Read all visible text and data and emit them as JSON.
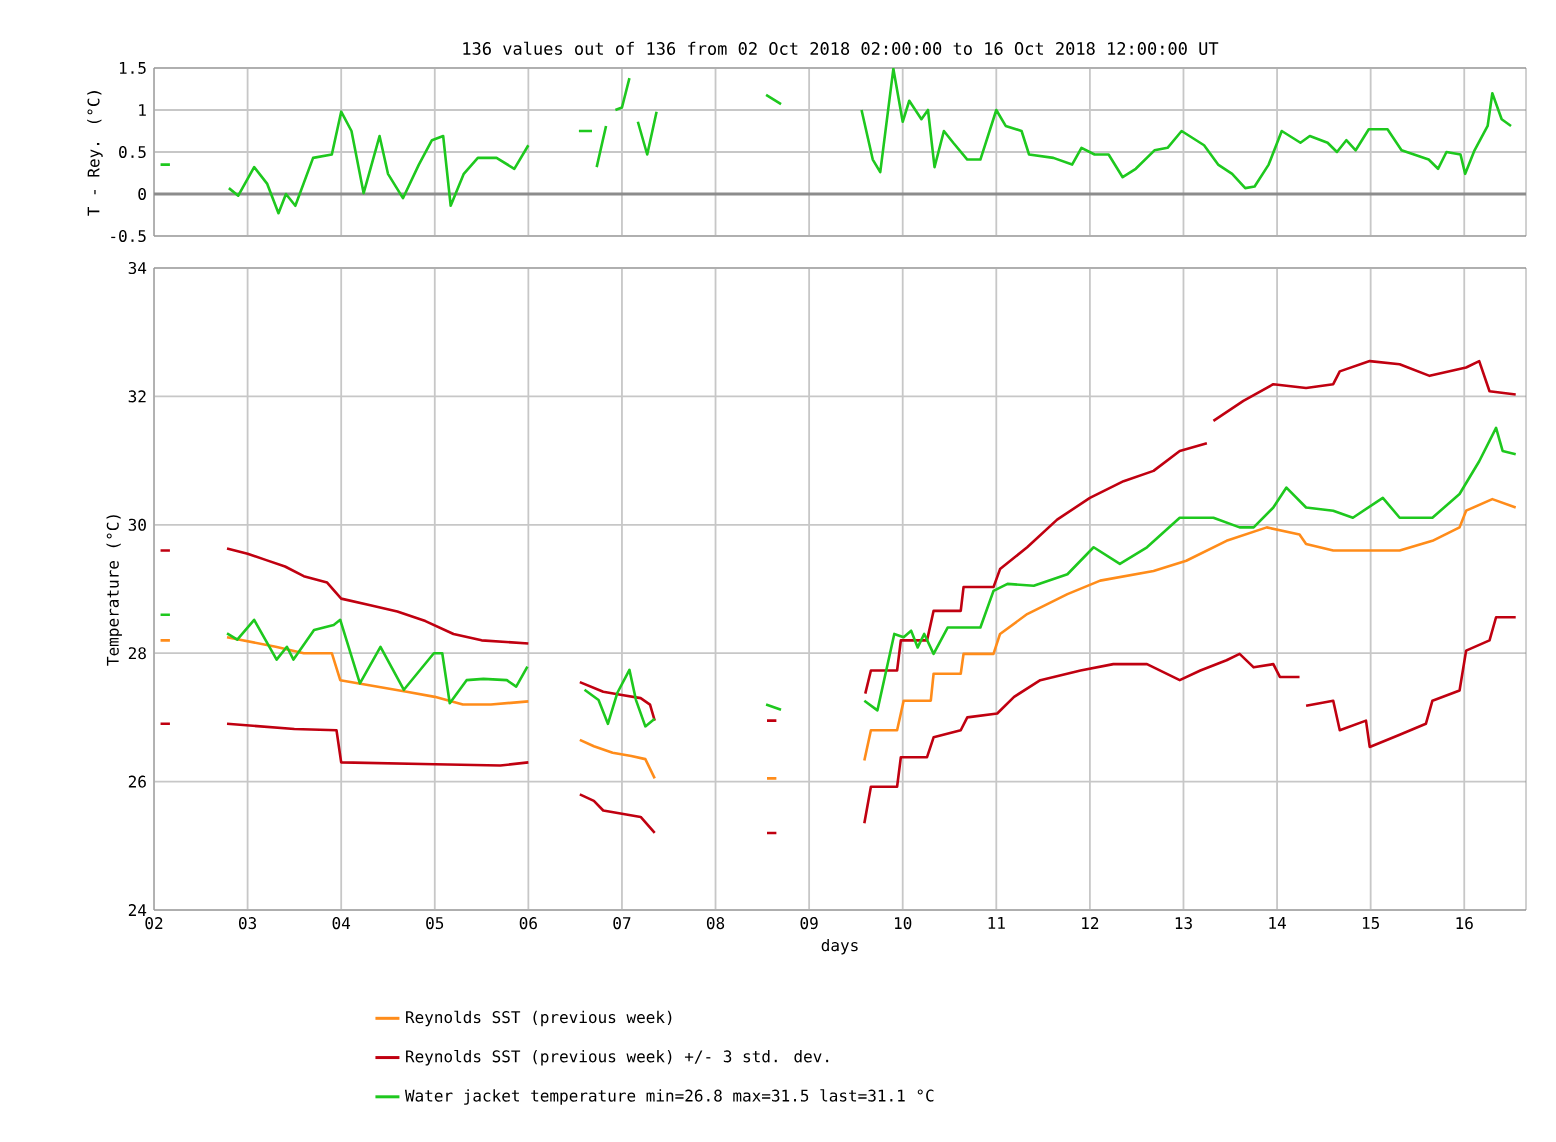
{
  "chart_data": [
    {
      "type": "line",
      "title": "136 values out of 136 from 02 Oct 2018 02:00:00 to 16 Oct 2018 12:00:00 UT",
      "ylabel": "T - Rey. (°C)",
      "xlim": [
        2,
        16.66
      ],
      "ylim": [
        -0.5,
        1.5
      ],
      "xticks": [
        {
          "value": 2,
          "label": null
        },
        {
          "value": 3,
          "label": null
        },
        {
          "value": 4,
          "label": null
        },
        {
          "value": 5,
          "label": null
        },
        {
          "value": 6,
          "label": null
        },
        {
          "value": 7,
          "label": null
        },
        {
          "value": 8,
          "label": null
        },
        {
          "value": 9,
          "label": null
        },
        {
          "value": 10,
          "label": null
        },
        {
          "value": 11,
          "label": null
        },
        {
          "value": 12,
          "label": null
        },
        {
          "value": 13,
          "label": null
        },
        {
          "value": 14,
          "label": null
        },
        {
          "value": 15,
          "label": null
        },
        {
          "value": 16,
          "label": null
        }
      ],
      "yticks": [
        -0.5,
        0,
        0.5,
        1,
        1.5
      ],
      "grid": true,
      "tick_labels": "y",
      "ref_lines": [
        {
          "axis": "y",
          "value": 0,
          "color": "#8c8c8c"
        }
      ],
      "series": [
        {
          "color": "#1ec81e",
          "x": [
            2.07,
            2.17,
            2.5,
            2.8,
            2.9,
            3.07,
            3.21,
            3.33,
            3.41,
            3.51,
            3.7,
            3.9,
            4.0,
            4.11,
            4.24,
            4.41,
            4.5,
            4.66,
            4.83,
            4.97,
            5.09,
            5.17,
            5.31,
            5.46,
            5.66,
            5.85,
            6.0,
            6.3,
            6.54,
            6.68,
            6.7,
            6.73,
            6.83,
            6.88,
            6.93,
            7.0,
            7.08,
            7.12,
            7.17,
            7.27,
            7.37,
            8.0,
            8.54,
            8.7,
            9.1,
            9.56,
            9.68,
            9.76,
            9.9,
            10.0,
            10.07,
            10.2,
            10.27,
            10.34,
            10.44,
            10.54,
            10.69,
            10.83,
            11.0,
            11.1,
            11.27,
            11.35,
            11.61,
            11.81,
            11.91,
            12.05,
            12.2,
            12.35,
            12.49,
            12.69,
            12.83,
            12.98,
            13.22,
            13.37,
            13.52,
            13.66,
            13.76,
            13.91,
            14.05,
            14.25,
            14.35,
            14.54,
            14.64,
            14.74,
            14.84,
            14.98,
            15.18,
            15.33,
            15.62,
            15.72,
            15.81,
            15.96,
            16.01,
            16.11,
            16.25,
            16.3,
            16.4,
            16.5
          ],
          "values": [
            0.35,
            0.35,
            null,
            0.07,
            -0.02,
            0.32,
            0.12,
            -0.23,
            0,
            -0.14,
            0.43,
            0.47,
            0.98,
            0.75,
            0.01,
            0.69,
            0.24,
            -0.05,
            0.35,
            0.64,
            0.69,
            -0.14,
            0.24,
            0.43,
            0.43,
            0.3,
            0.58,
            null,
            0.75,
            0.75,
            null,
            0.32,
            0.81,
            null,
            1.0,
            1.03,
            1.38,
            null,
            0.86,
            0.47,
            0.98,
            null,
            1.18,
            1.07,
            null,
            1.0,
            0.41,
            0.26,
            1.49,
            0.86,
            1.11,
            0.89,
            1.0,
            0.32,
            0.75,
            0.61,
            0.41,
            0.41,
            1.0,
            0.81,
            0.75,
            0.47,
            0.43,
            0.35,
            0.55,
            0.47,
            0.47,
            0.2,
            0.3,
            0.52,
            0.55,
            0.75,
            0.58,
            0.35,
            0.24,
            0.07,
            0.09,
            0.35,
            0.75,
            0.61,
            0.69,
            0.61,
            0.5,
            0.64,
            0.52,
            0.77,
            0.77,
            0.52,
            0.41,
            0.3,
            0.5,
            0.47,
            0.24,
            0.52,
            0.81,
            1.2,
            0.89,
            0.81
          ]
        }
      ]
    },
    {
      "type": "line",
      "xlabel": "days",
      "ylabel": "Temperature (°C)",
      "xlim": [
        2,
        16.66
      ],
      "ylim": [
        24,
        34
      ],
      "xticks": [
        {
          "value": 2,
          "label": "02"
        },
        {
          "value": 3,
          "label": "03"
        },
        {
          "value": 4,
          "label": "04"
        },
        {
          "value": 5,
          "label": "05"
        },
        {
          "value": 6,
          "label": "06"
        },
        {
          "value": 7,
          "label": "07"
        },
        {
          "value": 8,
          "label": "08"
        },
        {
          "value": 9,
          "label": "09"
        },
        10,
        11,
        12,
        13,
        14,
        15,
        16
      ],
      "yticks": [
        24,
        26,
        28,
        30,
        32,
        34
      ],
      "grid": true,
      "legend": "bottom",
      "series": [
        {
          "name": "Reynolds SST (previous week)",
          "color": "#ff8c1a",
          "x": [
            2.07,
            2.17,
            2.5,
            2.78,
            3.3,
            3.6,
            3.9,
            3.99,
            4.3,
            4.7,
            5.0,
            5.3,
            5.6,
            6.0,
            6.3,
            6.55,
            6.7,
            6.9,
            7.1,
            7.25,
            7.35,
            8.0,
            8.55,
            8.65,
            9.1,
            9.59,
            9.66,
            9.94,
            10.01,
            10.3,
            10.33,
            10.62,
            10.65,
            10.97,
            11.04,
            11.33,
            11.76,
            12.11,
            12.68,
            13.03,
            13.46,
            13.89,
            14.24,
            14.31,
            14.6,
            14.95,
            15.31,
            15.66,
            15.95,
            16.02,
            16.3,
            16.55
          ],
          "values": [
            28.2,
            28.2,
            null,
            28.25,
            28.1,
            28.0,
            28.0,
            27.58,
            27.5,
            27.4,
            27.32,
            27.2,
            27.2,
            27.25,
            null,
            26.65,
            26.55,
            26.45,
            26.4,
            26.35,
            26.05,
            null,
            26.05,
            26.05,
            null,
            26.33,
            26.8,
            26.8,
            27.26,
            27.26,
            27.68,
            27.68,
            27.99,
            27.99,
            28.3,
            28.61,
            28.92,
            29.13,
            29.28,
            29.44,
            29.75,
            29.96,
            29.85,
            29.7,
            29.6,
            29.6,
            29.6,
            29.75,
            29.96,
            30.22,
            30.4,
            30.27
          ]
        },
        {
          "name": "Reynolds SST (previous week) +/- 3 std. dev.",
          "color": "#c00010",
          "x": [
            2.07,
            2.17,
            2.5,
            2.78,
            3.0,
            3.2,
            3.4,
            3.6,
            3.85,
            4.0,
            4.3,
            4.6,
            4.9,
            5.2,
            5.5,
            6.0,
            6.3,
            6.55,
            6.8,
            7.0,
            7.2,
            7.3,
            7.35,
            8.0,
            8.55,
            8.65,
            9.1,
            9.6,
            9.66,
            9.94,
            9.98,
            10.26,
            10.33,
            10.62,
            10.65,
            10.97,
            11.04,
            11.33,
            11.65,
            12.0,
            12.36,
            12.68,
            12.96,
            13.25,
            13.28,
            13.32,
            13.64,
            13.96,
            14.31,
            14.6,
            14.67,
            14.99,
            15.31,
            15.63,
            16.02,
            16.16,
            16.27,
            16.55
          ],
          "values": [
            29.6,
            29.6,
            null,
            29.63,
            29.55,
            29.45,
            29.35,
            29.2,
            29.1,
            28.85,
            28.75,
            28.65,
            28.5,
            28.3,
            28.2,
            28.15,
            null,
            27.55,
            27.4,
            27.35,
            27.3,
            27.2,
            26.95,
            null,
            26.95,
            26.95,
            null,
            27.37,
            27.73,
            27.73,
            28.2,
            28.2,
            28.66,
            28.66,
            29.03,
            29.03,
            29.31,
            29.65,
            30.08,
            30.42,
            30.68,
            30.84,
            31.15,
            31.27,
            null,
            31.62,
            31.93,
            32.19,
            32.13,
            32.19,
            32.39,
            32.55,
            32.5,
            32.32,
            32.45,
            32.55,
            32.08,
            32.03
          ]
        },
        {
          "color": "#c00010",
          "x": [
            2.07,
            2.17,
            2.5,
            2.78,
            3.5,
            3.95,
            4.0,
            5.0,
            5.7,
            6.0,
            6.3,
            6.55,
            6.7,
            6.8,
            7.0,
            7.2,
            7.35,
            8.0,
            8.55,
            8.65,
            9.1,
            9.59,
            9.66,
            9.94,
            9.98,
            10.26,
            10.33,
            10.62,
            10.69,
            11.01,
            11.19,
            11.47,
            11.9,
            12.25,
            12.61,
            12.96,
            13.18,
            13.46,
            13.6,
            13.75,
            13.96,
            14.03,
            14.24,
            14.28,
            14.31,
            14.6,
            14.67,
            14.95,
            14.99,
            15.31,
            15.59,
            15.66,
            15.95,
            16.02,
            16.27,
            16.34,
            16.55
          ],
          "values": [
            26.9,
            26.9,
            null,
            26.9,
            26.82,
            26.8,
            26.3,
            26.27,
            26.25,
            26.3,
            null,
            25.8,
            25.7,
            25.55,
            25.5,
            25.45,
            25.2,
            null,
            25.2,
            25.2,
            null,
            25.35,
            25.92,
            25.92,
            26.38,
            26.38,
            26.69,
            26.8,
            27.0,
            27.06,
            27.32,
            27.58,
            27.73,
            27.83,
            27.83,
            27.58,
            27.73,
            27.89,
            27.99,
            27.78,
            27.83,
            27.63,
            27.63,
            null,
            27.18,
            27.26,
            26.8,
            26.95,
            26.54,
            26.73,
            26.9,
            27.26,
            27.42,
            28.04,
            28.2,
            28.56,
            28.56
          ]
        },
        {
          "name": "Water jacket temperature min=26.8 max=31.5 last=31.1 °C",
          "color": "#1ec81e",
          "x": [
            2.07,
            2.17,
            2.5,
            2.78,
            2.89,
            3.07,
            3.31,
            3.42,
            3.49,
            3.71,
            3.92,
            3.99,
            4.2,
            4.42,
            4.67,
            4.99,
            5.08,
            5.16,
            5.34,
            5.52,
            5.77,
            5.87,
            5.99,
            6.3,
            6.6,
            6.75,
            6.85,
            6.95,
            7.08,
            7.15,
            7.25,
            7.35,
            8.0,
            8.54,
            8.7,
            9.1,
            9.59,
            9.73,
            9.91,
            10.01,
            10.09,
            10.16,
            10.23,
            10.33,
            10.48,
            10.83,
            10.97,
            11.12,
            11.4,
            11.76,
            12.04,
            12.32,
            12.61,
            12.96,
            13.32,
            13.6,
            13.75,
            13.96,
            14.1,
            14.31,
            14.6,
            14.81,
            15.13,
            15.31,
            15.66,
            15.95,
            16.16,
            16.34,
            16.41,
            16.55
          ],
          "values": [
            28.6,
            28.6,
            null,
            28.31,
            28.21,
            28.52,
            27.9,
            28.1,
            27.9,
            28.36,
            28.44,
            28.52,
            27.53,
            28.1,
            27.43,
            28.0,
            28.0,
            27.22,
            27.58,
            27.6,
            27.58,
            27.48,
            27.79,
            null,
            27.43,
            27.27,
            26.9,
            27.38,
            27.74,
            27.27,
            26.86,
            26.98,
            null,
            27.2,
            27.12,
            null,
            27.26,
            27.11,
            28.3,
            28.25,
            28.35,
            28.09,
            28.3,
            27.99,
            28.4,
            28.4,
            28.97,
            29.08,
            29.05,
            29.23,
            29.65,
            29.39,
            29.65,
            30.11,
            30.11,
            29.96,
            29.96,
            30.27,
            30.58,
            30.27,
            30.22,
            30.11,
            30.42,
            30.11,
            30.11,
            30.48,
            30.99,
            31.51,
            31.15,
            31.1
          ]
        }
      ]
    }
  ]
}
